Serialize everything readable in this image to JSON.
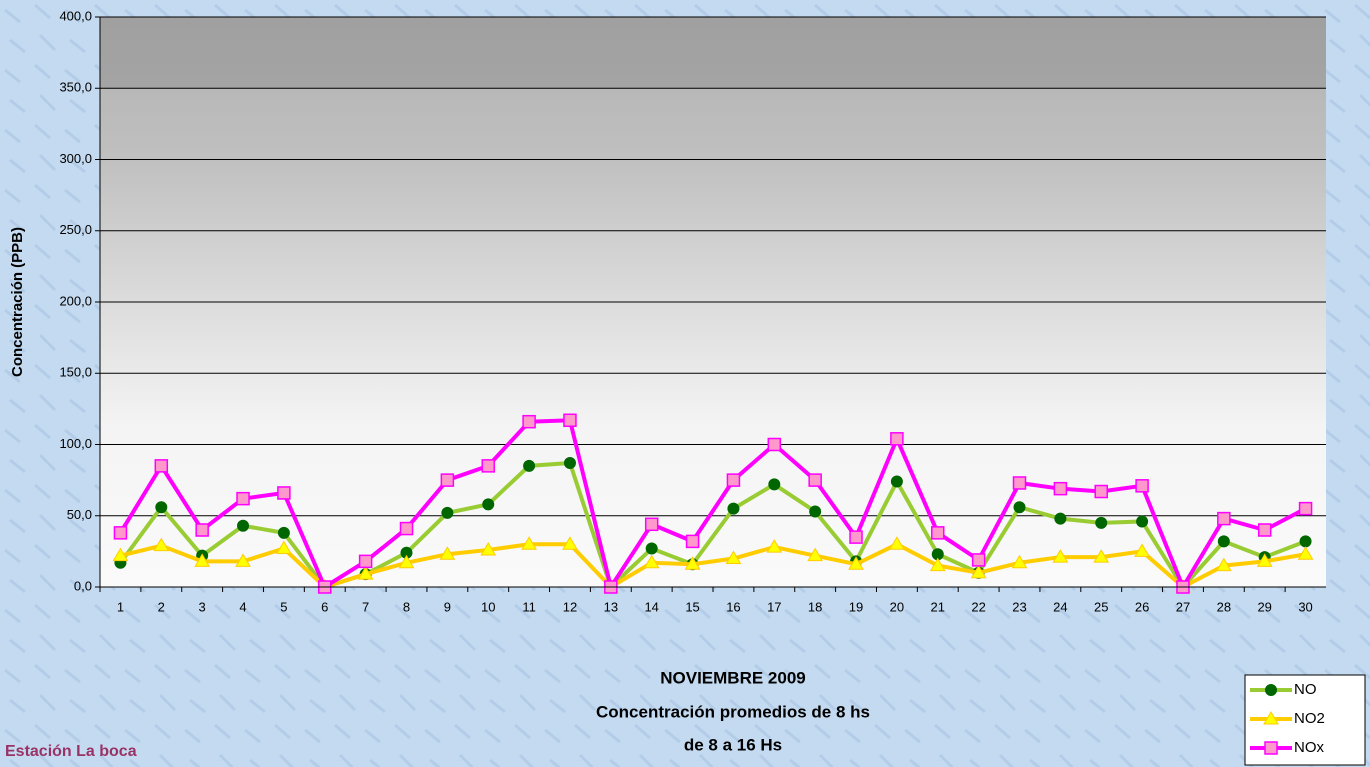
{
  "chart_data": {
    "type": "line",
    "title": "NOVIEMBRE 2009",
    "subtitle": [
      "Concentración promedios de 8 hs",
      "de 8 a 16 Hs"
    ],
    "annotation": "Estación La boca",
    "y_label": "Concentración (PPB)",
    "categories": [
      "1",
      "2",
      "3",
      "4",
      "5",
      "6",
      "7",
      "8",
      "9",
      "10",
      "11",
      "12",
      "13",
      "14",
      "15",
      "16",
      "17",
      "18",
      "19",
      "20",
      "21",
      "22",
      "23",
      "24",
      "25",
      "26",
      "27",
      "28",
      "29",
      "30"
    ],
    "series": [
      {
        "name": "NO",
        "color": "#99cc33",
        "marker": "circle",
        "marker_color": "#006600",
        "values": [
          17,
          56,
          22,
          43,
          38,
          0,
          9,
          24,
          52,
          58,
          85,
          87,
          0,
          27,
          16,
          55,
          72,
          53,
          18,
          74,
          23,
          10,
          56,
          48,
          45,
          46,
          0,
          32,
          21,
          32
        ]
      },
      {
        "name": "NO2",
        "color": "#ffcc00",
        "marker": "triangle",
        "marker_color": "#ffff00",
        "values": [
          22,
          29,
          18,
          18,
          27,
          0,
          9,
          17,
          23,
          26,
          30,
          30,
          0,
          17,
          16,
          20,
          28,
          22,
          16,
          30,
          15,
          10,
          17,
          21,
          21,
          25,
          0,
          15,
          18,
          23
        ]
      },
      {
        "name": "NOx",
        "color": "#ff00ff",
        "marker": "square",
        "marker_color": "#ff99cc",
        "values": [
          38,
          85,
          40,
          62,
          66,
          0,
          18,
          41,
          75,
          85,
          116,
          117,
          0,
          44,
          32,
          75,
          100,
          75,
          35,
          104,
          38,
          19,
          73,
          69,
          67,
          71,
          0,
          48,
          40,
          55
        ]
      }
    ],
    "ylim": [
      0,
      400
    ],
    "yticks": [
      {
        "value": 0,
        "label": "0,0"
      },
      {
        "value": 50,
        "label": "50,0"
      },
      {
        "value": 100,
        "label": "100,0"
      },
      {
        "value": 150,
        "label": "150,0"
      },
      {
        "value": 200,
        "label": "200,0"
      },
      {
        "value": 250,
        "label": "250,0"
      },
      {
        "value": 300,
        "label": "300,0"
      },
      {
        "value": 350,
        "label": "350,0"
      },
      {
        "value": 400,
        "label": "400,0"
      }
    ],
    "grid": true,
    "legend": "bottom-right"
  }
}
